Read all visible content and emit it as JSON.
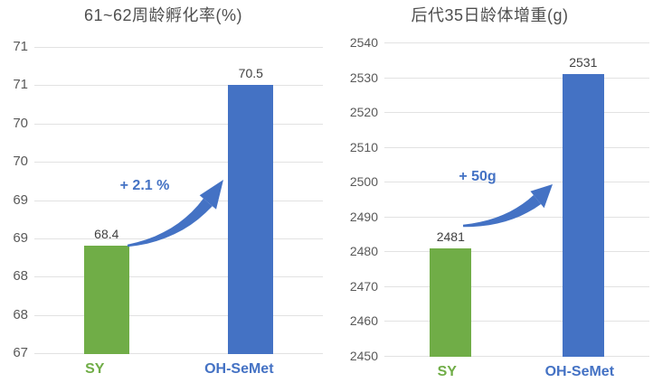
{
  "colors": {
    "bar_green": "#70AD47",
    "bar_blue": "#4472C4",
    "arrow_blue": "#4472C4",
    "grid_line": "#E2E2E2",
    "axis_tick_text": "#595959",
    "title_text": "#4F4F4F",
    "value_label_text": "#404040"
  },
  "chart_data": [
    {
      "type": "bar",
      "title": "61~62周龄孵化率(%)",
      "categories": [
        "SY",
        "OH-SeMet"
      ],
      "values": [
        68.4,
        70.5
      ],
      "data_labels": [
        "68.4",
        "70.5"
      ],
      "bar_colors": [
        "#70AD47",
        "#4472C4"
      ],
      "category_colors": [
        "#70AD47",
        "#4472C4"
      ],
      "ylim": [
        67,
        71
      ],
      "ytick_step": 0.5,
      "yticks": [
        {
          "value": 67,
          "label": "67"
        },
        {
          "value": 67.5,
          "label": "68"
        },
        {
          "value": 68,
          "label": "68"
        },
        {
          "value": 68.5,
          "label": "69"
        },
        {
          "value": 69,
          "label": "69"
        },
        {
          "value": 69.5,
          "label": "70"
        },
        {
          "value": 70,
          "label": "70"
        },
        {
          "value": 70.5,
          "label": "71"
        },
        {
          "value": 71,
          "label": "71"
        }
      ],
      "grid": true,
      "legend": "none",
      "annotation": {
        "text": "+ 2.1 %",
        "color": "#4472C4"
      }
    },
    {
      "type": "bar",
      "title": "后代35日龄体增重(g)",
      "categories": [
        "SY",
        "OH-SeMet"
      ],
      "values": [
        2481,
        2531
      ],
      "data_labels": [
        "2481",
        "2531"
      ],
      "bar_colors": [
        "#70AD47",
        "#4472C4"
      ],
      "category_colors": [
        "#70AD47",
        "#4472C4"
      ],
      "ylim": [
        2450,
        2540
      ],
      "ytick_step": 10,
      "yticks": [
        {
          "value": 2450,
          "label": "2450"
        },
        {
          "value": 2460,
          "label": "2460"
        },
        {
          "value": 2470,
          "label": "2470"
        },
        {
          "value": 2480,
          "label": "2480"
        },
        {
          "value": 2490,
          "label": "2490"
        },
        {
          "value": 2500,
          "label": "2500"
        },
        {
          "value": 2510,
          "label": "2510"
        },
        {
          "value": 2520,
          "label": "2520"
        },
        {
          "value": 2530,
          "label": "2530"
        },
        {
          "value": 2540,
          "label": "2540"
        }
      ],
      "grid": true,
      "legend": "none",
      "annotation": {
        "text": "+ 50g",
        "color": "#4472C4"
      }
    }
  ]
}
